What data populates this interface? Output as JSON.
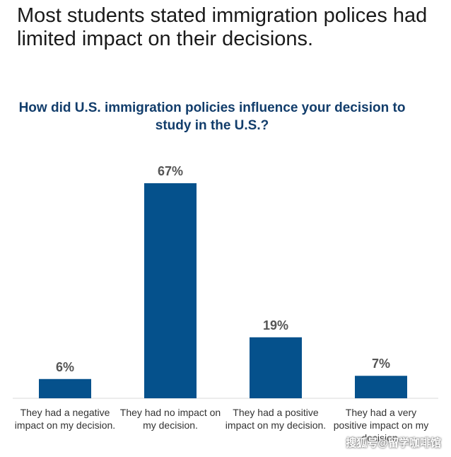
{
  "headline": "Most students stated immigration polices had limited impact on their decisions.",
  "chart_data": {
    "type": "bar",
    "title": "How did U.S. immigration policies influence your decision to study in the U.S.?",
    "categories": [
      "They had a negative impact on my decision.",
      "They had no impact on my decision.",
      "They had a positive impact on my decision.",
      "They had a very positive impact on my decision."
    ],
    "values": [
      6,
      67,
      19,
      7
    ],
    "value_labels": [
      "6%",
      "67%",
      "19%",
      "7%"
    ],
    "unit": "%",
    "ylim": [
      0,
      67
    ],
    "grid": false,
    "bar_color": "#05518c"
  },
  "watermark": "搜狐号@留学咖啡馆"
}
